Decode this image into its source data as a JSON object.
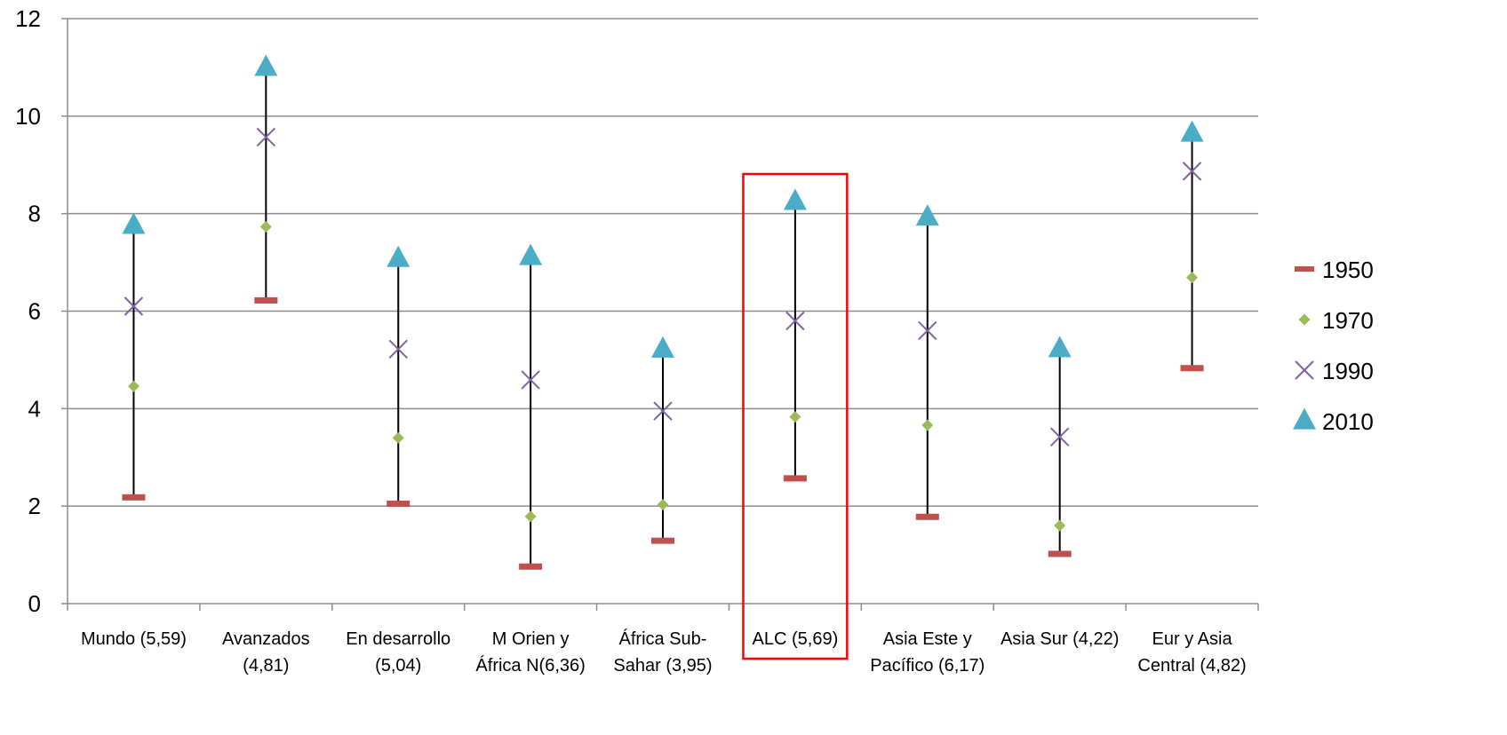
{
  "chart_data": {
    "type": "scatter",
    "title": "",
    "xlabel": "",
    "ylabel": "",
    "ylim": [
      0,
      12
    ],
    "yticks": [
      "0",
      "2",
      "4",
      "6",
      "8",
      "10",
      "12"
    ],
    "grid": true,
    "legend_position": "right",
    "categories": [
      [
        "Mundo (5,59)"
      ],
      [
        "Avanzados",
        "(4,81)"
      ],
      [
        "En desarrollo",
        "(5,04)"
      ],
      [
        "M Orien y",
        "África N(6,36)"
      ],
      [
        "África Sub-",
        "Sahar (3,95)"
      ],
      [
        "ALC (5,69)"
      ],
      [
        "Asia Este y",
        "Pacífico (6,17)"
      ],
      [
        "Asia Sur (4,22)"
      ],
      [
        "Eur y Asia",
        "Central (4,82)"
      ]
    ],
    "series": [
      {
        "name": "1950",
        "marker": "dash",
        "color": "#c0504d",
        "values": [
          2.18,
          6.22,
          2.05,
          0.76,
          1.29,
          2.57,
          1.78,
          1.02,
          4.83
        ]
      },
      {
        "name": "1970",
        "marker": "diamond",
        "color": "#9bbb59",
        "values": [
          4.46,
          7.73,
          3.4,
          1.79,
          2.03,
          3.83,
          3.66,
          1.6,
          6.69
        ]
      },
      {
        "name": "1990",
        "marker": "x",
        "color": "#8064a2",
        "values": [
          6.1,
          9.57,
          5.22,
          4.59,
          3.95,
          5.8,
          5.6,
          3.42,
          8.87
        ]
      },
      {
        "name": "2010",
        "marker": "triangle",
        "color": "#4bacc6",
        "values": [
          7.76,
          11.0,
          7.08,
          7.12,
          5.22,
          8.25,
          7.93,
          5.23,
          9.65
        ]
      }
    ],
    "highlight": {
      "category_index": 5,
      "color": "#ff0000"
    }
  }
}
